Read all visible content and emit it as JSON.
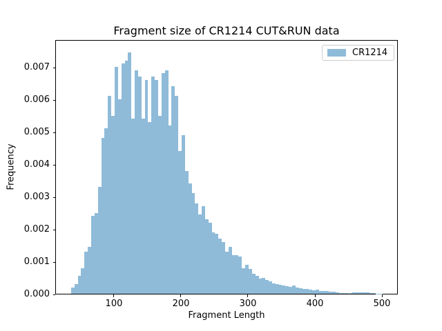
{
  "colors": {
    "bar": "#8fbbd9",
    "axis": "#000000",
    "legend_border": "#cccccc",
    "background": "#ffffff",
    "text": "#000000"
  },
  "legend": {
    "label": "CR1214",
    "swatch_icon": "filled-rect-swatch"
  },
  "chart_data": {
    "type": "bar",
    "subtype": "histogram",
    "title": "Fragment size of CR1214 CUT&RUN data",
    "xlabel": "Fragment Length",
    "ylabel": "Frequency",
    "grid": false,
    "legend_position": "upper right",
    "xlim": [
      12.4,
      523.7
    ],
    "ylim": [
      0,
      0.00786
    ],
    "x_ticks": [
      100,
      200,
      300,
      400,
      500
    ],
    "x_tick_labels": [
      "100",
      "200",
      "300",
      "400",
      "500"
    ],
    "y_ticks": [
      0,
      0.001,
      0.002,
      0.003,
      0.004,
      0.005,
      0.006,
      0.007
    ],
    "y_tick_labels": [
      "0.000",
      "0.001",
      "0.002",
      "0.003",
      "0.004",
      "0.005",
      "0.006",
      "0.007"
    ],
    "series": [
      {
        "name": "CR1214",
        "bin_start": 35,
        "bin_width": 5,
        "values": [
          0.0002,
          0.0003,
          0.00055,
          0.0008,
          0.0013,
          0.00145,
          0.0024,
          0.0025,
          0.0033,
          0.0048,
          0.0051,
          0.0061,
          0.0055,
          0.007,
          0.006,
          0.0071,
          0.0072,
          0.00745,
          0.0054,
          0.0069,
          0.0067,
          0.0054,
          0.0066,
          0.0053,
          0.0067,
          0.0066,
          0.0055,
          0.0068,
          0.0069,
          0.0052,
          0.0064,
          0.0061,
          0.0044,
          0.0049,
          0.0038,
          0.0034,
          0.0031,
          0.0028,
          0.00245,
          0.0027,
          0.0023,
          0.0022,
          0.0019,
          0.00185,
          0.0017,
          0.0016,
          0.0013,
          0.00145,
          0.0012,
          0.0012,
          0.00115,
          0.0008,
          0.0009,
          0.00078,
          0.00062,
          0.00055,
          0.00048,
          0.0005,
          0.00044,
          0.00038,
          0.00033,
          0.0003,
          0.00028,
          0.00026,
          0.00024,
          0.00022,
          0.00025,
          0.0002,
          0.00018,
          0.00016,
          0.00015,
          0.00013,
          0.00012,
          0.00013,
          0.0001,
          9e-05,
          8e-05,
          6e-05,
          6e-05,
          5e-05,
          3e-05,
          3e-05,
          2e-05,
          3e-05,
          4e-05,
          5e-05,
          5e-05,
          4e-05,
          4e-05,
          3e-05,
          2e-05,
          1e-05,
          1e-05
        ]
      }
    ]
  }
}
